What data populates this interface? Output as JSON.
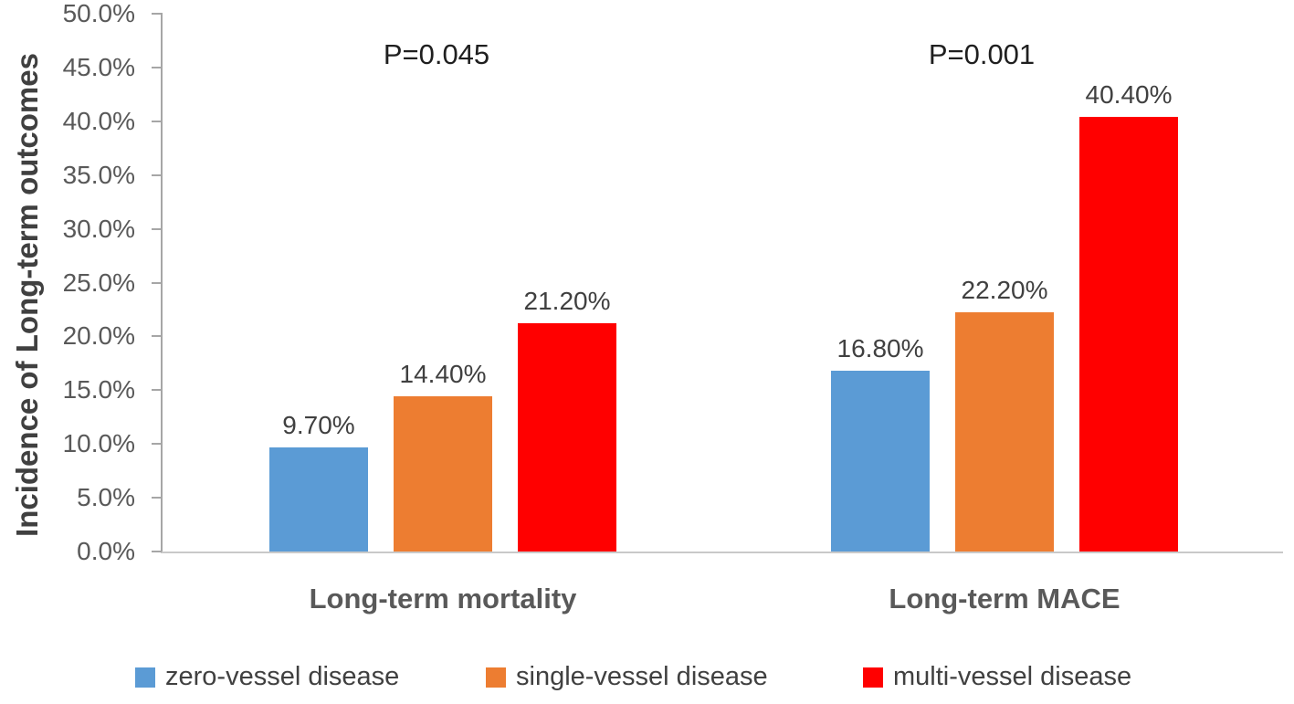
{
  "chart_data": {
    "type": "bar",
    "title": "",
    "xlabel": "",
    "ylabel": "Incidence of Long-term outcomes",
    "ylim": [
      0,
      50
    ],
    "ytick_step": 5,
    "ytick_labels": [
      "0.0%",
      "5.0%",
      "10.0%",
      "15.0%",
      "20.0%",
      "25.0%",
      "30.0%",
      "35.0%",
      "40.0%",
      "45.0%",
      "50.0%"
    ],
    "grid": false,
    "legend_position": "bottom",
    "categories": [
      "Long-term mortality",
      "Long-term MACE"
    ],
    "series": [
      {
        "name": "zero-vessel disease",
        "color": "#5B9BD5",
        "values": [
          9.7,
          16.8
        ],
        "labels": [
          "9.70%",
          "16.80%"
        ]
      },
      {
        "name": "single-vessel disease",
        "color": "#ED7D31",
        "values": [
          14.4,
          22.2
        ],
        "labels": [
          "14.40%",
          "22.20%"
        ]
      },
      {
        "name": "multi-vessel disease",
        "color": "#FF0000",
        "values": [
          21.2,
          40.4
        ],
        "labels": [
          "21.20%",
          "40.40%"
        ]
      }
    ],
    "annotations": [
      {
        "text": "P=0.045",
        "category": "Long-term mortality"
      },
      {
        "text": "P=0.001",
        "category": "Long-term MACE"
      }
    ]
  }
}
